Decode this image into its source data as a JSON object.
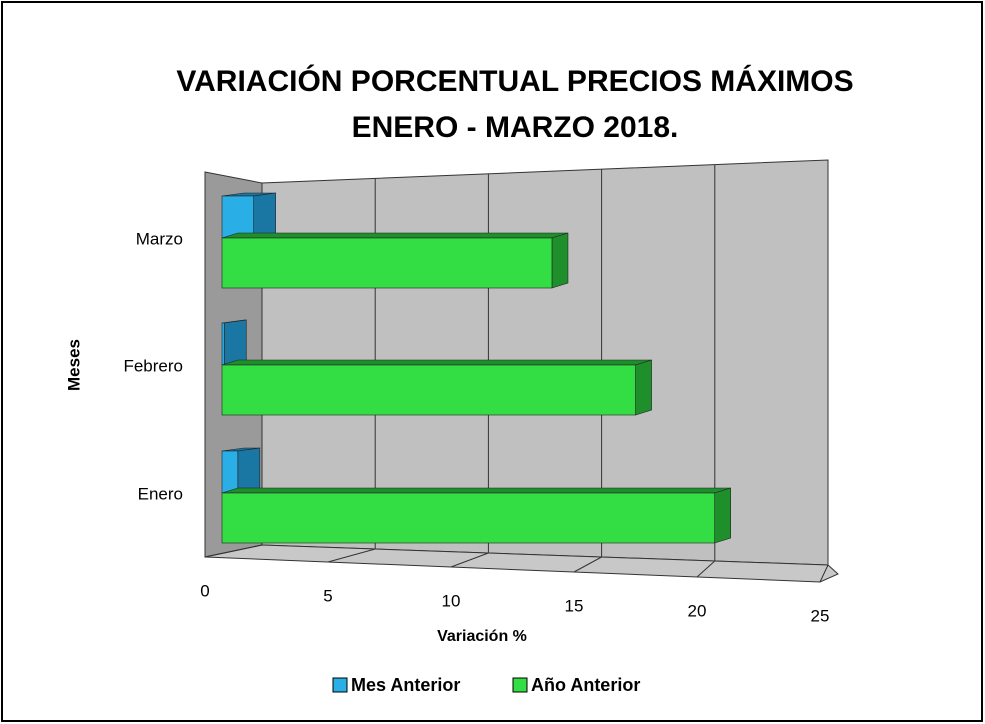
{
  "chart_data": {
    "type": "bar3d_horizontal",
    "title": "VARIACIÓN PORCENTUAL PRECIOS MÁXIMOS",
    "subtitle": "ENERO - MARZO 2018.",
    "x_label": "Variación %",
    "y_label": "Meses",
    "categories": [
      "Enero",
      "Febrero",
      "Marzo"
    ],
    "series": [
      {
        "name": "Mes Anterior",
        "color": "#2aaee6",
        "values": [
          0.7,
          0.1,
          1.4
        ]
      },
      {
        "name": "Año Anterior",
        "color": "#33dd44",
        "values": [
          21.8,
          18.3,
          14.6
        ]
      }
    ],
    "xlim": [
      0,
      25
    ],
    "xticks": [
      0,
      5,
      10,
      15,
      20,
      25
    ],
    "grid": true,
    "legend": "bottom"
  }
}
